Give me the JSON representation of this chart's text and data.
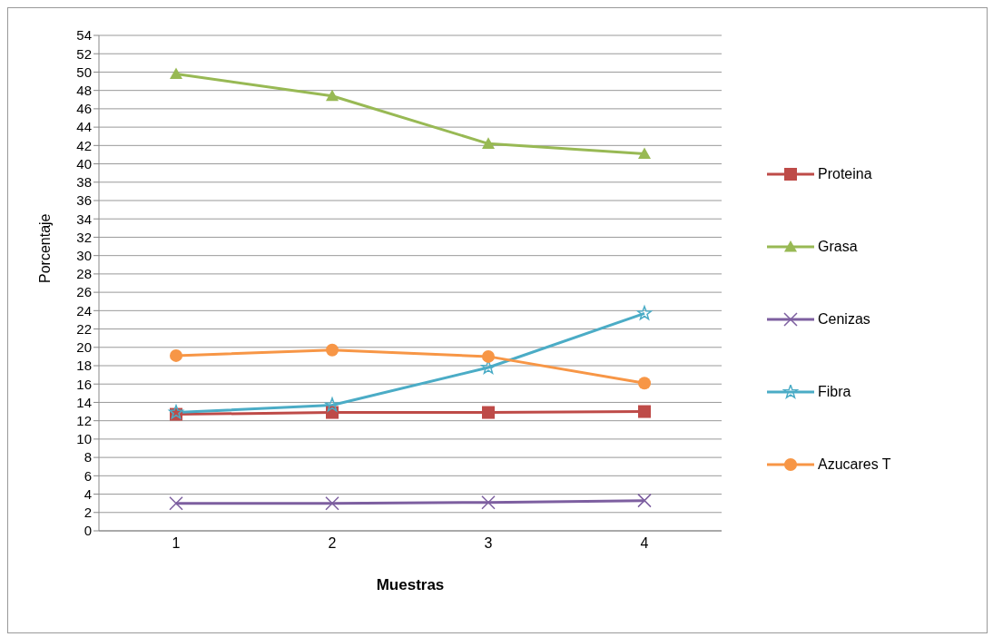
{
  "chart_data": {
    "type": "line",
    "xlabel": "Muestras",
    "ylabel": "Porcentaje",
    "categories": [
      "1",
      "2",
      "3",
      "4"
    ],
    "series": [
      {
        "name": "Proteina",
        "color": "#be4b48",
        "marker": "square",
        "values": [
          12.7,
          12.9,
          12.9,
          13.0
        ]
      },
      {
        "name": "Grasa",
        "color": "#98b954",
        "marker": "triangle",
        "values": [
          49.8,
          47.4,
          42.2,
          41.1
        ]
      },
      {
        "name": "Cenizas",
        "color": "#7d5fa0",
        "marker": "cross",
        "values": [
          3.0,
          3.0,
          3.1,
          3.3
        ]
      },
      {
        "name": "Fibra",
        "color": "#4bacc6",
        "marker": "star",
        "values": [
          12.9,
          13.7,
          17.8,
          23.7
        ]
      },
      {
        "name": "Azucares T",
        "color": "#f79646",
        "marker": "circle",
        "values": [
          19.1,
          19.7,
          19.0,
          16.1
        ]
      }
    ],
    "ylim": [
      0,
      54
    ],
    "yticks": [
      0,
      2,
      4,
      6,
      8,
      10,
      12,
      14,
      16,
      18,
      20,
      22,
      24,
      26,
      28,
      30,
      32,
      34,
      36,
      38,
      40,
      42,
      44,
      46,
      48,
      50,
      52,
      54
    ],
    "grid": "y",
    "legend": "right",
    "line_style": "solid"
  }
}
